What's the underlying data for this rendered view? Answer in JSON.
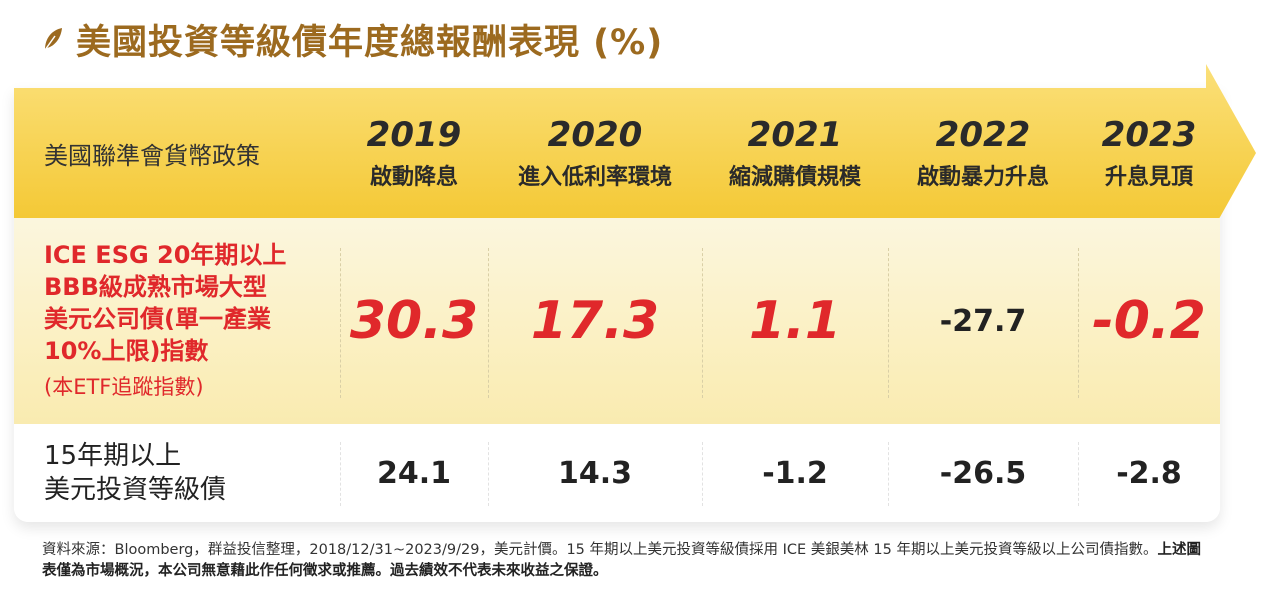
{
  "title": "美國投資等級債年度總報酬表現 (%)",
  "icons": {
    "title": "leaf-icon"
  },
  "colors": {
    "title": "#9c6a1f",
    "highlight": "#e0282b",
    "header_band": "#f5cf3a"
  },
  "header": {
    "policy_label": "美國聯準會貨幣政策",
    "columns": [
      {
        "year": "2019",
        "event": "啟動降息"
      },
      {
        "year": "2020",
        "event": "進入低利率環境"
      },
      {
        "year": "2021",
        "event": "縮減購債規模"
      },
      {
        "year": "2022",
        "event": "啟動暴力升息"
      },
      {
        "year": "2023",
        "event": "升息見頂"
      }
    ]
  },
  "chart_data": {
    "type": "table",
    "title": "美國投資等級債年度總報酬表現 (%)",
    "categories": [
      "2019",
      "2020",
      "2021",
      "2022",
      "2023"
    ],
    "series": [
      {
        "name_lines": [
          "ICE ESG 20年期以上",
          "BBB級成熟市場大型",
          "美元公司債(單一產業",
          "10%上限)指數"
        ],
        "note": "(本ETF追蹤指數)",
        "values": [
          "30.3",
          "17.3",
          "1.1",
          "-27.7",
          "-0.2"
        ]
      },
      {
        "name_lines": [
          "15年期以上",
          "美元投資等級債"
        ],
        "values": [
          "24.1",
          "14.3",
          "-1.2",
          "-26.5",
          "-2.8"
        ]
      }
    ]
  },
  "footnote": {
    "part1": "資料來源：Bloomberg，群益投信整理，2018/12/31~2023/9/29，美元計價。15 年期以上美元投資等級債採用 ICE 美銀美林 15 年期以上美元投資等級以上公司債指數。",
    "part2": "上述圖表僅為市場概況，本公司無意藉此作任何徵求或推薦。過去績效不代表未來收益之保證。"
  }
}
